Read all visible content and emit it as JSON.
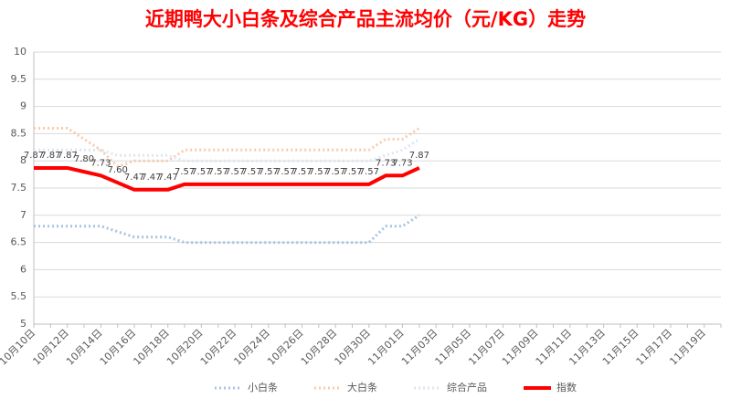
{
  "chart_data": {
    "type": "line",
    "title": "近期鸭大小白条及综合产品主流均价（元/KG）走势",
    "categories": [
      "10月10日",
      null,
      "10月12日",
      null,
      "10月14日",
      null,
      "10月16日",
      null,
      "10月18日",
      null,
      "10月20日",
      null,
      "10月22日",
      null,
      "10月24日",
      null,
      "10月26日",
      null,
      "10月28日",
      null,
      "10月30日",
      null,
      "11月01日",
      null,
      "11月03日",
      null,
      "11月05日",
      null,
      "11月07日",
      null,
      "11月09日",
      null,
      "11月11日",
      null,
      "11月13日",
      null,
      "11月15日",
      null,
      "11月17日",
      null,
      "11月19日",
      null
    ],
    "series": [
      {
        "name": "小白条",
        "color": "#a9c4e0",
        "style": "dotted",
        "values": [
          6.8,
          6.8,
          6.8,
          6.8,
          6.8,
          6.7,
          6.6,
          6.6,
          6.6,
          6.5,
          6.5,
          6.5,
          6.5,
          6.5,
          6.5,
          6.5,
          6.5,
          6.5,
          6.5,
          6.5,
          6.5,
          6.8,
          6.8,
          7.0,
          null,
          null,
          null,
          null,
          null,
          null,
          null,
          null,
          null,
          null,
          null,
          null,
          null,
          null,
          null,
          null,
          null,
          null
        ]
      },
      {
        "name": "大白条",
        "color": "#f8cbad",
        "style": "dotted",
        "values": [
          8.6,
          8.6,
          8.6,
          8.4,
          8.2,
          7.9,
          8.0,
          8.0,
          8.0,
          8.2,
          8.2,
          8.2,
          8.2,
          8.2,
          8.2,
          8.2,
          8.2,
          8.2,
          8.2,
          8.2,
          8.2,
          8.4,
          8.4,
          8.6,
          null,
          null,
          null,
          null,
          null,
          null,
          null,
          null,
          null,
          null,
          null,
          null,
          null,
          null,
          null,
          null,
          null,
          null
        ]
      },
      {
        "name": "综合产品",
        "color": "#dce6f2",
        "style": "dotted",
        "values": [
          8.2,
          8.2,
          8.2,
          8.2,
          8.2,
          8.1,
          8.1,
          8.1,
          8.1,
          8.0,
          8.0,
          8.0,
          8.0,
          8.0,
          8.0,
          8.0,
          8.0,
          8.0,
          8.0,
          8.0,
          8.0,
          8.1,
          8.2,
          8.4,
          null,
          null,
          null,
          null,
          null,
          null,
          null,
          null,
          null,
          null,
          null,
          null,
          null,
          null,
          null,
          null,
          null,
          null
        ]
      },
      {
        "name": "指数",
        "color": "#ff0000",
        "style": "solid",
        "values": [
          7.87,
          7.87,
          7.87,
          7.8,
          7.73,
          7.6,
          7.47,
          7.47,
          7.47,
          7.57,
          7.57,
          7.57,
          7.57,
          7.57,
          7.57,
          7.57,
          7.57,
          7.57,
          7.57,
          7.57,
          7.57,
          7.73,
          7.73,
          7.87,
          null,
          null,
          null,
          null,
          null,
          null,
          null,
          null,
          null,
          null,
          null,
          null,
          null,
          null,
          null,
          null,
          null,
          null
        ],
        "value_labels": [
          "7.87",
          "7.87",
          "7.87",
          "7.80",
          "7.73",
          "7.60",
          "7.47",
          "7.47",
          "7.47",
          "7.57",
          "7.57",
          "7.57",
          "7.57",
          "7.57",
          "7.57",
          "7.57",
          "7.57",
          "7.57",
          "7.57",
          "7.57",
          "7.57",
          "7.73",
          "7.73",
          "7.87",
          null,
          null,
          null,
          null,
          null,
          null,
          null,
          null,
          null,
          null,
          null,
          null,
          null,
          null,
          null,
          null,
          null,
          null
        ]
      }
    ],
    "ylim": [
      5,
      10
    ],
    "yticks": [
      5,
      5.5,
      6,
      6.5,
      7,
      7.5,
      8,
      8.5,
      9,
      9.5,
      10
    ],
    "grid": true,
    "legend": "bottom"
  }
}
